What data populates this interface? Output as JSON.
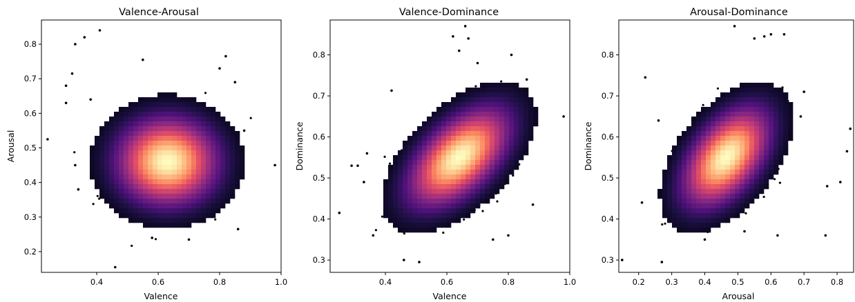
{
  "figure": {
    "background": "#ffffff",
    "point_color": "#000000"
  },
  "chart_data": [
    {
      "type": "scatter",
      "title": "Valence-Arousal",
      "xlabel": "Valence",
      "ylabel": "Arousal",
      "xlim": [
        0.22,
        1.0
      ],
      "ylim": [
        0.14,
        0.87
      ],
      "xticks": [
        "0.4",
        "0.6",
        "0.8",
        "1.0"
      ],
      "yticks": [
        "0.2",
        "0.3",
        "0.4",
        "0.5",
        "0.6",
        "0.7",
        "0.8"
      ],
      "overlay": "density heatmap (magma colormap)",
      "density_peak": {
        "x": 0.63,
        "y": 0.46
      },
      "bulk_spread": {
        "x_sd": 0.075,
        "y_sd": 0.058
      },
      "correlation": 0.0,
      "grid": false,
      "legend": "none",
      "outliers": [
        [
          0.24,
          0.525
        ],
        [
          0.3,
          0.63
        ],
        [
          0.3,
          0.68
        ],
        [
          0.32,
          0.715
        ],
        [
          0.33,
          0.8
        ],
        [
          0.36,
          0.82
        ],
        [
          0.41,
          0.84
        ],
        [
          0.33,
          0.45
        ],
        [
          0.34,
          0.38
        ],
        [
          0.46,
          0.155
        ],
        [
          0.55,
          0.755
        ],
        [
          0.82,
          0.765
        ],
        [
          0.86,
          0.265
        ],
        [
          0.88,
          0.55
        ],
        [
          0.98,
          0.45
        ],
        [
          0.7,
          0.235
        ],
        [
          0.58,
          0.24
        ],
        [
          0.8,
          0.73
        ],
        [
          0.85,
          0.69
        ],
        [
          0.38,
          0.64
        ]
      ]
    },
    {
      "type": "scatter",
      "title": "Valence-Dominance",
      "xlabel": "Valence",
      "ylabel": "Dominance",
      "xlim": [
        0.22,
        1.0
      ],
      "ylim": [
        0.27,
        0.885
      ],
      "xticks": [
        "0.4",
        "0.6",
        "0.8",
        "1.0"
      ],
      "yticks": [
        "0.3",
        "0.4",
        "0.5",
        "0.6",
        "0.7",
        "0.8"
      ],
      "overlay": "density heatmap (magma colormap)",
      "density_peak": {
        "x": 0.64,
        "y": 0.55
      },
      "bulk_spread": {
        "x_sd": 0.075,
        "y_sd": 0.055
      },
      "correlation": 0.55,
      "grid": false,
      "legend": "none",
      "outliers": [
        [
          0.25,
          0.415
        ],
        [
          0.29,
          0.53
        ],
        [
          0.36,
          0.36
        ],
        [
          0.46,
          0.3
        ],
        [
          0.51,
          0.295
        ],
        [
          0.42,
          0.713
        ],
        [
          0.62,
          0.845
        ],
        [
          0.66,
          0.87
        ],
        [
          0.67,
          0.84
        ],
        [
          0.64,
          0.81
        ],
        [
          0.7,
          0.78
        ],
        [
          0.81,
          0.8
        ],
        [
          0.98,
          0.65
        ],
        [
          0.88,
          0.435
        ],
        [
          0.8,
          0.36
        ],
        [
          0.75,
          0.35
        ],
        [
          0.33,
          0.49
        ],
        [
          0.34,
          0.56
        ],
        [
          0.31,
          0.53
        ],
        [
          0.86,
          0.74
        ]
      ]
    },
    {
      "type": "scatter",
      "title": "Arousal-Dominance",
      "xlabel": "Arousal",
      "ylabel": "Dominance",
      "xlim": [
        0.14,
        0.85
      ],
      "ylim": [
        0.27,
        0.885
      ],
      "xticks": [
        "0.2",
        "0.3",
        "0.4",
        "0.5",
        "0.6",
        "0.7",
        "0.8"
      ],
      "yticks": [
        "0.3",
        "0.4",
        "0.5",
        "0.6",
        "0.7",
        "0.8"
      ],
      "overlay": "density heatmap (magma colormap)",
      "density_peak": {
        "x": 0.465,
        "y": 0.55
      },
      "bulk_spread": {
        "x_sd": 0.06,
        "y_sd": 0.055
      },
      "correlation": 0.5,
      "grid": false,
      "legend": "none",
      "outliers": [
        [
          0.15,
          0.3
        ],
        [
          0.27,
          0.295
        ],
        [
          0.22,
          0.745
        ],
        [
          0.26,
          0.64
        ],
        [
          0.21,
          0.44
        ],
        [
          0.49,
          0.87
        ],
        [
          0.55,
          0.84
        ],
        [
          0.64,
          0.85
        ],
        [
          0.6,
          0.85
        ],
        [
          0.58,
          0.845
        ],
        [
          0.84,
          0.62
        ],
        [
          0.81,
          0.49
        ],
        [
          0.77,
          0.48
        ],
        [
          0.83,
          0.565
        ],
        [
          0.765,
          0.36
        ],
        [
          0.7,
          0.71
        ],
        [
          0.52,
          0.37
        ],
        [
          0.69,
          0.65
        ],
        [
          0.62,
          0.36
        ],
        [
          0.4,
          0.35
        ]
      ]
    }
  ]
}
